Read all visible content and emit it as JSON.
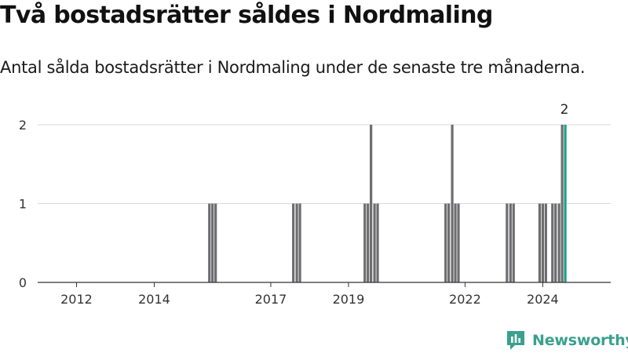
{
  "header": {
    "title": "Två bostadsrätter såldes i Nordmaling",
    "subtitle": "Antal sålda bostadsrätter i Nordmaling under de senaste tre månaderna."
  },
  "brand": {
    "name": "Newsworthy",
    "icon": "newsworthy-logo-icon",
    "color": "#3aa08e"
  },
  "colors": {
    "bar": "#6d6d70",
    "highlight": "#1a9e8c",
    "grid": "#d9d9d9",
    "axis": "#333333"
  },
  "chart_data": {
    "type": "bar",
    "title": "Två bostadsrätter såldes i Nordmaling",
    "subtitle": "Antal sålda bostadsrätter i Nordmaling under de senaste tre månaderna.",
    "xlabel": "",
    "ylabel": "",
    "x_range": [
      2011.0,
      2025.75
    ],
    "ylim": [
      0,
      2
    ],
    "y_ticks": [
      0,
      1,
      2
    ],
    "x_ticks": [
      "2012",
      "2014",
      "2017",
      "2019",
      "2022",
      "2024"
    ],
    "grid": "horizontal",
    "series": [
      {
        "values": [
          {
            "x": 2015.42,
            "y": 1
          },
          {
            "x": 2015.5,
            "y": 1
          },
          {
            "x": 2015.58,
            "y": 1
          },
          {
            "x": 2017.58,
            "y": 1
          },
          {
            "x": 2017.67,
            "y": 1
          },
          {
            "x": 2017.75,
            "y": 1
          },
          {
            "x": 2019.42,
            "y": 1
          },
          {
            "x": 2019.5,
            "y": 1
          },
          {
            "x": 2019.58,
            "y": 2
          },
          {
            "x": 2019.67,
            "y": 1
          },
          {
            "x": 2019.75,
            "y": 1
          },
          {
            "x": 2021.5,
            "y": 1
          },
          {
            "x": 2021.58,
            "y": 1
          },
          {
            "x": 2021.67,
            "y": 2
          },
          {
            "x": 2021.75,
            "y": 1
          },
          {
            "x": 2021.83,
            "y": 1
          },
          {
            "x": 2023.08,
            "y": 1
          },
          {
            "x": 2023.17,
            "y": 1
          },
          {
            "x": 2023.25,
            "y": 1
          },
          {
            "x": 2023.92,
            "y": 1
          },
          {
            "x": 2024.0,
            "y": 1
          },
          {
            "x": 2024.08,
            "y": 1
          },
          {
            "x": 2024.25,
            "y": 1
          },
          {
            "x": 2024.33,
            "y": 1
          },
          {
            "x": 2024.42,
            "y": 1
          },
          {
            "x": 2024.5,
            "y": 2
          }
        ]
      }
    ],
    "highlight": {
      "x": 2024.58,
      "y": 2,
      "label": "2"
    }
  }
}
